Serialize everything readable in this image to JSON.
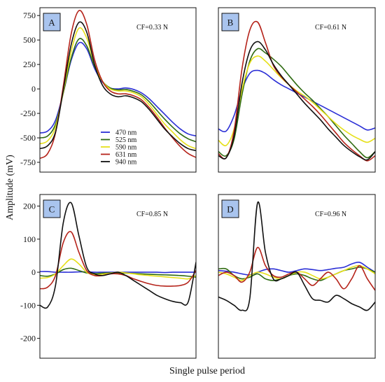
{
  "figure": {
    "xlabel": "Single pulse period",
    "ylabel": "Amplitude (mV)"
  },
  "legend": {
    "panel": "A",
    "entries": [
      {
        "label": "470 nm",
        "color": "#2b2fd6"
      },
      {
        "label": "525 nm",
        "color": "#2f6b12"
      },
      {
        "label": "590 nm",
        "color": "#e6e01a"
      },
      {
        "label": "631 nm",
        "color": "#b5231a"
      },
      {
        "label": "940 nm",
        "color": "#111111"
      }
    ]
  },
  "chart_data": [
    {
      "type": "line",
      "panel_label": "A",
      "annotation": "CF=0.33 N",
      "ylim": [
        -850,
        830
      ],
      "yticks": [
        -750,
        -500,
        -250,
        0,
        250,
        500,
        750
      ],
      "x": [
        0,
        0.05,
        0.1,
        0.15,
        0.2,
        0.25,
        0.3,
        0.35,
        0.4,
        0.45,
        0.5,
        0.55,
        0.6,
        0.65,
        0.7,
        0.75,
        0.8,
        0.85,
        0.9,
        0.95,
        1.0
      ],
      "series": [
        {
          "color": "#2b2fd6",
          "values": [
            -450,
            -430,
            -320,
            -40,
            290,
            470,
            410,
            210,
            70,
            10,
            0,
            10,
            -5,
            -40,
            -100,
            -180,
            -260,
            -340,
            -410,
            -460,
            -480
          ]
        },
        {
          "color": "#2f6b12",
          "values": [
            -500,
            -480,
            -360,
            -40,
            310,
            510,
            440,
            230,
            80,
            10,
            -10,
            -5,
            -25,
            -60,
            -130,
            -220,
            -310,
            -390,
            -460,
            -510,
            -540
          ]
        },
        {
          "color": "#e6e01a",
          "values": [
            -560,
            -530,
            -390,
            -30,
            380,
            620,
            520,
            250,
            80,
            0,
            -20,
            -20,
            -40,
            -80,
            -160,
            -260,
            -360,
            -440,
            -520,
            -580,
            -610
          ]
        },
        {
          "color": "#b5231a",
          "values": [
            -710,
            -660,
            -450,
            30,
            560,
            800,
            660,
            300,
            80,
            -20,
            -50,
            -50,
            -70,
            -110,
            -190,
            -290,
            -400,
            -500,
            -590,
            -660,
            -700
          ]
        },
        {
          "color": "#111111",
          "values": [
            -610,
            -580,
            -440,
            -10,
            450,
            680,
            580,
            250,
            40,
            -50,
            -80,
            -70,
            -90,
            -130,
            -210,
            -310,
            -410,
            -490,
            -560,
            -610,
            -630
          ]
        }
      ]
    },
    {
      "type": "line",
      "panel_label": "B",
      "annotation": "CF=0.61 N",
      "ylim": [
        -700,
        900
      ],
      "x": [
        0,
        0.05,
        0.1,
        0.15,
        0.2,
        0.25,
        0.3,
        0.35,
        0.4,
        0.45,
        0.5,
        0.55,
        0.6,
        0.65,
        0.7,
        0.75,
        0.8,
        0.85,
        0.9,
        0.95,
        1.0
      ],
      "series": [
        {
          "color": "#2b2fd6",
          "values": [
            -280,
            -300,
            -150,
            100,
            260,
            290,
            260,
            200,
            150,
            110,
            70,
            30,
            -10,
            -50,
            -90,
            -130,
            -170,
            -210,
            -250,
            -290,
            -270
          ]
        },
        {
          "color": "#2f6b12",
          "values": [
            -500,
            -540,
            -380,
            50,
            380,
            500,
            460,
            400,
            330,
            240,
            150,
            70,
            0,
            -80,
            -160,
            -250,
            -340,
            -420,
            -500,
            -560,
            -500
          ]
        },
        {
          "color": "#e6e01a",
          "values": [
            -390,
            -440,
            -280,
            100,
            360,
            430,
            380,
            300,
            220,
            150,
            90,
            40,
            -20,
            -90,
            -160,
            -230,
            -290,
            -340,
            -380,
            -410,
            -370
          ]
        },
        {
          "color": "#b5231a",
          "values": [
            -520,
            -560,
            -300,
            300,
            680,
            760,
            560,
            340,
            230,
            150,
            80,
            10,
            -60,
            -140,
            -230,
            -320,
            -410,
            -480,
            -540,
            -590,
            -540
          ]
        },
        {
          "color": "#111111",
          "values": [
            -540,
            -560,
            -350,
            160,
            480,
            570,
            490,
            350,
            240,
            150,
            60,
            -30,
            -110,
            -190,
            -280,
            -360,
            -440,
            -500,
            -550,
            -580,
            -500
          ]
        }
      ]
    },
    {
      "type": "line",
      "panel_label": "C",
      "annotation": "CF=0.85 N",
      "ylim": [
        -260,
        235
      ],
      "yticks": [
        -200,
        -100,
        0,
        100,
        200
      ],
      "x": [
        0,
        0.05,
        0.1,
        0.15,
        0.2,
        0.25,
        0.3,
        0.35,
        0.4,
        0.45,
        0.5,
        0.55,
        0.6,
        0.65,
        0.7,
        0.75,
        0.8,
        0.85,
        0.9,
        0.95,
        1.0
      ],
      "series": [
        {
          "color": "#2b2fd6",
          "values": [
            2,
            2,
            0,
            0,
            0,
            1,
            1,
            0,
            0,
            0,
            0,
            0,
            0,
            0,
            0,
            0,
            -1,
            0,
            0,
            0,
            0
          ]
        },
        {
          "color": "#2f6b12",
          "values": [
            -10,
            -12,
            -5,
            8,
            12,
            5,
            -2,
            -4,
            -3,
            -2,
            -2,
            -3,
            -4,
            -5,
            -6,
            -7,
            -8,
            -9,
            -10,
            -12,
            -15
          ]
        },
        {
          "color": "#e6e01a",
          "values": [
            -18,
            -16,
            -5,
            20,
            40,
            25,
            0,
            -8,
            -6,
            -3,
            0,
            -2,
            -5,
            -8,
            -10,
            -12,
            -14,
            -16,
            -18,
            -20,
            -10
          ]
        },
        {
          "color": "#b5231a",
          "values": [
            -50,
            -45,
            -10,
            90,
            122,
            60,
            5,
            -10,
            -10,
            -5,
            -5,
            -10,
            -20,
            -28,
            -35,
            -40,
            -42,
            -42,
            -40,
            -30,
            5
          ]
        },
        {
          "color": "#111111",
          "values": [
            -100,
            -105,
            -40,
            150,
            210,
            110,
            15,
            -5,
            -10,
            -5,
            0,
            -10,
            -25,
            -40,
            -55,
            -70,
            -80,
            -88,
            -92,
            -90,
            30
          ]
        }
      ]
    },
    {
      "type": "line",
      "panel_label": "D",
      "annotation": "CF=0.96 N",
      "ylim": [
        -260,
        235
      ],
      "x": [
        0,
        0.05,
        0.1,
        0.15,
        0.2,
        0.25,
        0.3,
        0.35,
        0.4,
        0.45,
        0.5,
        0.55,
        0.6,
        0.65,
        0.7,
        0.75,
        0.8,
        0.85,
        0.9,
        0.95,
        1.0
      ],
      "series": [
        {
          "color": "#2b2fd6",
          "values": [
            5,
            3,
            0,
            -5,
            -8,
            0,
            8,
            10,
            5,
            0,
            5,
            10,
            8,
            5,
            8,
            12,
            15,
            25,
            30,
            15,
            0
          ]
        },
        {
          "color": "#2f6b12",
          "values": [
            10,
            10,
            -10,
            -20,
            -15,
            -5,
            -20,
            -25,
            -20,
            -10,
            -5,
            -10,
            -20,
            -25,
            -15,
            -5,
            5,
            10,
            15,
            10,
            0
          ]
        },
        {
          "color": "#e6e01a",
          "values": [
            0,
            -5,
            -15,
            -25,
            -10,
            0,
            -5,
            -15,
            -20,
            -10,
            0,
            0,
            -10,
            -20,
            -15,
            -5,
            5,
            15,
            20,
            10,
            -5
          ]
        },
        {
          "color": "#b5231a",
          "values": [
            -10,
            0,
            -10,
            -30,
            0,
            75,
            20,
            -10,
            -15,
            -5,
            0,
            -20,
            -40,
            -20,
            0,
            -20,
            -50,
            -20,
            20,
            -20,
            -55
          ]
        },
        {
          "color": "#111111",
          "values": [
            -75,
            -85,
            -100,
            -115,
            -80,
            210,
            60,
            -20,
            -20,
            -10,
            0,
            -40,
            -80,
            -85,
            -90,
            -70,
            -80,
            -95,
            -105,
            -115,
            -90
          ]
        }
      ]
    }
  ]
}
